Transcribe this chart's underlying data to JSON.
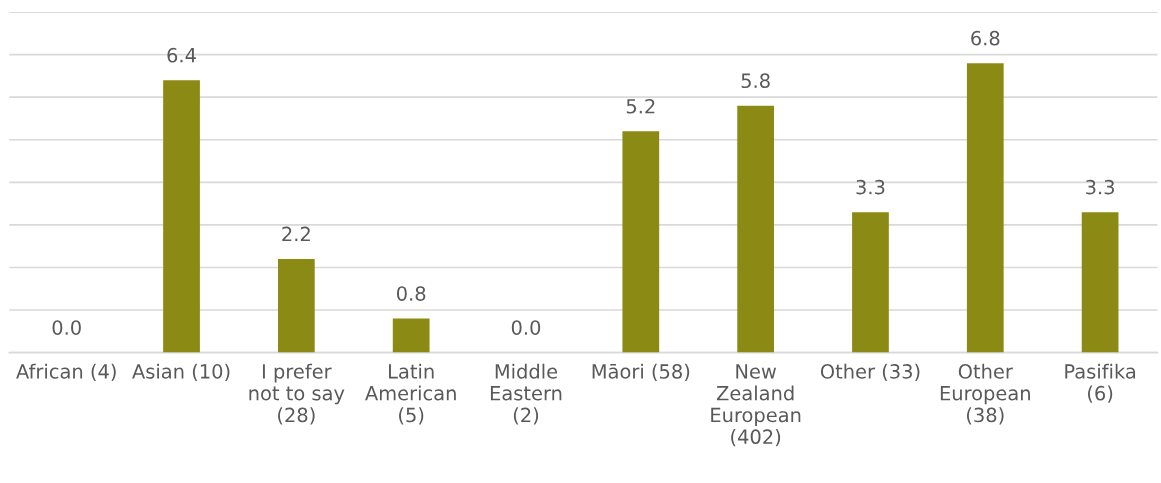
{
  "chart_data": {
    "type": "bar",
    "categories": [
      "African (4)",
      "Asian (10)",
      "I prefer\nnot to say\n(28)",
      "Latin\nAmerican\n(5)",
      "Middle\nEastern\n(2)",
      "Māori (58)",
      "New\nZealand\nEuropean\n(402)",
      "Other (33)",
      "Other\nEuropean\n(38)",
      "Pasifika\n(6)"
    ],
    "values": [
      0.0,
      6.4,
      2.2,
      0.8,
      0.0,
      5.2,
      5.8,
      3.3,
      6.8,
      3.3
    ],
    "color": "#8b8a14",
    "ylim": [
      0,
      8
    ],
    "yticks": [
      {
        "value": 0,
        "label": null
      },
      {
        "value": 1,
        "label": null
      },
      {
        "value": 2,
        "label": null
      },
      {
        "value": 3,
        "label": null
      },
      {
        "value": 4,
        "label": null
      },
      {
        "value": 5,
        "label": null
      },
      {
        "value": 6,
        "label": null
      },
      {
        "value": 7,
        "label": null
      },
      {
        "value": 8,
        "label": null
      }
    ],
    "grid": "y",
    "tick_labels": "x",
    "value_labels": [
      "0.0",
      "6.4",
      "2.2",
      "0.8",
      "0.0",
      "5.2",
      "5.8",
      "3.3",
      "6.8",
      "3.3"
    ]
  }
}
